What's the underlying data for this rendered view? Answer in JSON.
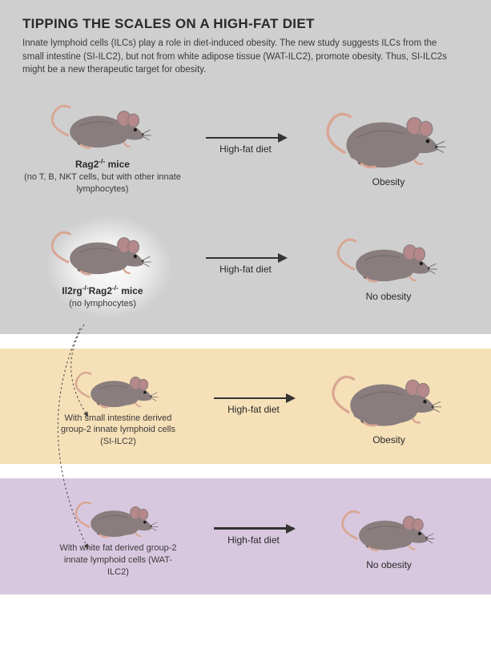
{
  "title": "TIPPING THE SCALES ON A HIGH-FAT DIET",
  "subtitle": "Innate lymphoid cells (ILCs) play a role in diet-induced obesity. The new study suggests ILCs from the small intestine (SI-ILC2), but not from white adipose tissue (WAT-ILC2), promote obesity. Thus, SI-ILC2s might be a new therapeutic target for obesity.",
  "arrow_label": "High-fat diet",
  "rows": {
    "rag2": {
      "name_html": "Rag2<span class='sup'>-/-</span> mice",
      "sub": "(no T, B, NKT cells, but with other innate lymphocytes)",
      "result": "Obesity"
    },
    "il2rg": {
      "name_html": "Il2rg<span class='sup'>-/-</span>Rag2<span class='sup'>-/-</span> mice",
      "sub": "(no lymphocytes)",
      "result": "No obesity"
    },
    "si": {
      "sub": "With small intestine derived group-2 innate lymphoid cells (SI-ILC2)",
      "result": "Obesity"
    },
    "wat": {
      "sub": "With white fat derived group-2 innate lymphoid cells (WAT-ILC2)",
      "result": "No obesity"
    }
  },
  "colors": {
    "body": "#8a7d7d",
    "body_dark": "#6d6060",
    "ear": "#b5888a",
    "tail": "#d9a693",
    "eye": "#1a1a1a",
    "nose": "#3a3a3a",
    "shadow": "#555050"
  }
}
